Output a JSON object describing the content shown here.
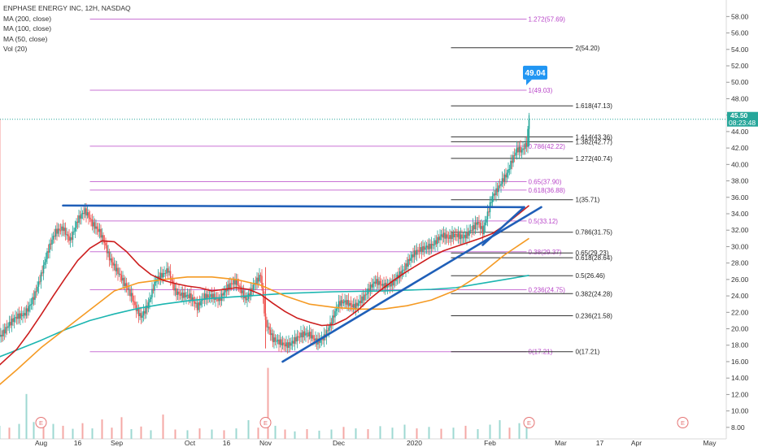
{
  "header": {
    "symbol_line": "ENPHASE ENERGY INC, 12H, NASDAQ",
    "indicators": [
      "MA (200, close)",
      "MA (100, close)",
      "MA (50, close)",
      "Vol (20)"
    ]
  },
  "price_tag": {
    "value": "45.50",
    "countdown": "08:23:48"
  },
  "callout": "49.04",
  "colors": {
    "up": "#26a69a",
    "down": "#ef5350",
    "ma200": "#1bb5b0",
    "ma100": "#f59a23",
    "ma50": "#cc1d1d",
    "trend": "#1f5fb8",
    "fib_purple": "#b845c8",
    "fib_black": "#333333",
    "callout": "#2196f3"
  },
  "chart_data": {
    "type": "candlestick",
    "title": "ENPHASE ENERGY INC, 12H, NASDAQ",
    "yaxis": {
      "side": "right",
      "ylim": [
        6.6,
        60.0
      ],
      "ticks": [
        "8.00",
        "10.00",
        "12.00",
        "14.00",
        "16.00",
        "18.00",
        "20.00",
        "22.00",
        "24.00",
        "26.00",
        "28.00",
        "30.00",
        "32.00",
        "34.00",
        "36.00",
        "38.00",
        "40.00",
        "42.00",
        "44.00",
        "46.00",
        "48.00",
        "50.00",
        "52.00",
        "54.00",
        "56.00",
        "58.00"
      ]
    },
    "xaxis": {
      "ticks": [
        {
          "label": "Aug",
          "day": 0
        },
        {
          "label": "16",
          "day": 15
        },
        {
          "label": "Sep",
          "day": 31
        },
        {
          "label": "Oct",
          "day": 61
        },
        {
          "label": "16",
          "day": 76
        },
        {
          "label": "Nov",
          "day": 92
        },
        {
          "label": "Dec",
          "day": 122
        },
        {
          "label": "2020",
          "day": 153
        },
        {
          "label": "Feb",
          "day": 184
        },
        {
          "label": "Mar",
          "day": 213
        },
        {
          "label": "17",
          "day": 229
        },
        {
          "label": "Apr",
          "day": 244
        },
        {
          "label": "May",
          "day": 274
        }
      ],
      "xlim": [
        -17,
        277
      ]
    },
    "price_path": [
      [
        -17,
        19.4
      ],
      [
        -12,
        20.4
      ],
      [
        -7,
        21.8
      ],
      [
        -3,
        24.4
      ],
      [
        0,
        26.5
      ],
      [
        3,
        29.1
      ],
      [
        6,
        31.5
      ],
      [
        9,
        32.6
      ],
      [
        12,
        31.3
      ],
      [
        15,
        33.2
      ],
      [
        18,
        33.8
      ],
      [
        21,
        32.5
      ],
      [
        24,
        32.2
      ],
      [
        26,
        31.0
      ],
      [
        28,
        29.0
      ],
      [
        31,
        26.8
      ],
      [
        34,
        25.0
      ],
      [
        37,
        24.0
      ],
      [
        39,
        22.8
      ],
      [
        41,
        22.0
      ],
      [
        44,
        23.2
      ],
      [
        47,
        25.4
      ],
      [
        50,
        26.2
      ],
      [
        52,
        27.2
      ],
      [
        55,
        25.1
      ],
      [
        58,
        24.4
      ],
      [
        61,
        23.6
      ],
      [
        64,
        22.1
      ],
      [
        67,
        24.0
      ],
      [
        70,
        24.6
      ],
      [
        73,
        23.8
      ],
      [
        76,
        24.5
      ],
      [
        80,
        25.4
      ],
      [
        84,
        24.0
      ],
      [
        87,
        25.7
      ],
      [
        90,
        26.3
      ],
      [
        92,
        20.2
      ],
      [
        95,
        18.4
      ],
      [
        98,
        18.7
      ],
      [
        102,
        18.5
      ],
      [
        106,
        18.7
      ],
      [
        110,
        19.0
      ],
      [
        113,
        18.8
      ],
      [
        116,
        19.5
      ],
      [
        119,
        20.8
      ],
      [
        122,
        22.5
      ],
      [
        125,
        23.0
      ],
      [
        128,
        23.1
      ],
      [
        131,
        23.9
      ],
      [
        134,
        24.5
      ],
      [
        137,
        25.2
      ],
      [
        140,
        25.0
      ],
      [
        143,
        25.8
      ],
      [
        146,
        26.8
      ],
      [
        149,
        27.2
      ],
      [
        152,
        28.3
      ],
      [
        155,
        29.4
      ],
      [
        158,
        30.4
      ],
      [
        161,
        30.8
      ],
      [
        164,
        31.2
      ],
      [
        167,
        30.5
      ],
      [
        170,
        31.3
      ],
      [
        173,
        31.6
      ],
      [
        176,
        32.4
      ],
      [
        179,
        32.8
      ],
      [
        181,
        31.3
      ],
      [
        183,
        33.5
      ],
      [
        185,
        36.0
      ],
      [
        187,
        37.3
      ],
      [
        189,
        38.6
      ],
      [
        191,
        39.3
      ],
      [
        193,
        40.5
      ],
      [
        195,
        41.4
      ],
      [
        197,
        41.1
      ],
      [
        199,
        42.2
      ],
      [
        200,
        45.5
      ]
    ],
    "volume": [
      {
        "day": -17,
        "v": 3.5,
        "up": true
      },
      {
        "day": -13,
        "v": 3.0,
        "up": false
      },
      {
        "day": -9,
        "v": 4.0,
        "up": true
      },
      {
        "day": -6,
        "v": 12.0,
        "up": true
      },
      {
        "day": -3,
        "v": 4.5,
        "up": true
      },
      {
        "day": 1,
        "v": 3.2,
        "up": false
      },
      {
        "day": 5,
        "v": 4.0,
        "up": true
      },
      {
        "day": 9,
        "v": 3.5,
        "up": false
      },
      {
        "day": 13,
        "v": 2.7,
        "up": true
      },
      {
        "day": 17,
        "v": 4.2,
        "up": false
      },
      {
        "day": 21,
        "v": 2.8,
        "up": true
      },
      {
        "day": 25,
        "v": 5.2,
        "up": false
      },
      {
        "day": 29,
        "v": 3.0,
        "up": false
      },
      {
        "day": 33,
        "v": 5.8,
        "up": false
      },
      {
        "day": 37,
        "v": 2.6,
        "up": true
      },
      {
        "day": 41,
        "v": 3.3,
        "up": false
      },
      {
        "day": 45,
        "v": 2.3,
        "up": true
      },
      {
        "day": 50,
        "v": 6.5,
        "up": false
      },
      {
        "day": 55,
        "v": 2.5,
        "up": false
      },
      {
        "day": 60,
        "v": 2.3,
        "up": true
      },
      {
        "day": 65,
        "v": 2.8,
        "up": false
      },
      {
        "day": 70,
        "v": 2.5,
        "up": true
      },
      {
        "day": 75,
        "v": 2.3,
        "up": false
      },
      {
        "day": 80,
        "v": 2.8,
        "up": true
      },
      {
        "day": 85,
        "v": 5.0,
        "up": true
      },
      {
        "day": 89,
        "v": 3.0,
        "up": false
      },
      {
        "day": 93,
        "v": 19.0,
        "up": false
      },
      {
        "day": 96,
        "v": 3.5,
        "up": true
      },
      {
        "day": 100,
        "v": 2.5,
        "up": false
      },
      {
        "day": 104,
        "v": 2.0,
        "up": true
      },
      {
        "day": 109,
        "v": 2.6,
        "up": false
      },
      {
        "day": 114,
        "v": 2.2,
        "up": true
      },
      {
        "day": 119,
        "v": 2.5,
        "up": true
      },
      {
        "day": 124,
        "v": 3.2,
        "up": false
      },
      {
        "day": 129,
        "v": 2.8,
        "up": true
      },
      {
        "day": 134,
        "v": 2.6,
        "up": false
      },
      {
        "day": 139,
        "v": 3.4,
        "up": true
      },
      {
        "day": 144,
        "v": 3.0,
        "up": true
      },
      {
        "day": 149,
        "v": 3.8,
        "up": true
      },
      {
        "day": 154,
        "v": 2.8,
        "up": false
      },
      {
        "day": 159,
        "v": 3.2,
        "up": true
      },
      {
        "day": 164,
        "v": 2.7,
        "up": false
      },
      {
        "day": 169,
        "v": 3.0,
        "up": true
      },
      {
        "day": 174,
        "v": 3.5,
        "up": false
      },
      {
        "day": 179,
        "v": 2.6,
        "up": true
      },
      {
        "day": 184,
        "v": 3.8,
        "up": true
      },
      {
        "day": 188,
        "v": 5.0,
        "up": true
      },
      {
        "day": 192,
        "v": 3.0,
        "up": false
      },
      {
        "day": 196,
        "v": 4.2,
        "up": true
      },
      {
        "day": 199,
        "v": 5.4,
        "up": true
      }
    ],
    "ma200": [
      [
        -17,
        16.6
      ],
      [
        -10,
        17.4
      ],
      [
        0,
        18.6
      ],
      [
        10,
        19.9
      ],
      [
        20,
        21.0
      ],
      [
        30,
        21.8
      ],
      [
        40,
        22.5
      ],
      [
        50,
        23.0
      ],
      [
        60,
        23.4
      ],
      [
        70,
        23.7
      ],
      [
        80,
        23.9
      ],
      [
        90,
        24.1
      ],
      [
        100,
        24.3
      ],
      [
        110,
        24.4
      ],
      [
        120,
        24.5
      ],
      [
        130,
        24.55
      ],
      [
        140,
        24.6
      ],
      [
        150,
        24.7
      ],
      [
        160,
        24.8
      ],
      [
        170,
        25.0
      ],
      [
        180,
        25.5
      ],
      [
        190,
        26.0
      ],
      [
        200,
        26.5
      ]
    ],
    "ma100": [
      [
        -17,
        13.2
      ],
      [
        -10,
        15.0
      ],
      [
        0,
        17.7
      ],
      [
        10,
        20.0
      ],
      [
        20,
        22.3
      ],
      [
        30,
        24.6
      ],
      [
        40,
        25.6
      ],
      [
        50,
        26.0
      ],
      [
        60,
        26.3
      ],
      [
        70,
        26.3
      ],
      [
        80,
        26.0
      ],
      [
        90,
        25.3
      ],
      [
        100,
        24.0
      ],
      [
        110,
        23.0
      ],
      [
        120,
        22.6
      ],
      [
        130,
        22.4
      ],
      [
        140,
        22.4
      ],
      [
        150,
        22.8
      ],
      [
        160,
        23.5
      ],
      [
        170,
        24.7
      ],
      [
        180,
        26.6
      ],
      [
        190,
        29.0
      ],
      [
        200,
        31.0
      ]
    ],
    "ma50": [
      [
        -17,
        15.6
      ],
      [
        -10,
        17.5
      ],
      [
        -5,
        19.5
      ],
      [
        0,
        21.7
      ],
      [
        5,
        24.0
      ],
      [
        10,
        26.2
      ],
      [
        15,
        28.3
      ],
      [
        20,
        29.8
      ],
      [
        25,
        30.7
      ],
      [
        30,
        30.6
      ],
      [
        35,
        29.4
      ],
      [
        40,
        27.8
      ],
      [
        45,
        26.6
      ],
      [
        50,
        25.9
      ],
      [
        55,
        25.5
      ],
      [
        60,
        25.2
      ],
      [
        65,
        25.0
      ],
      [
        70,
        24.6
      ],
      [
        75,
        24.8
      ],
      [
        80,
        25.0
      ],
      [
        85,
        24.8
      ],
      [
        90,
        24.2
      ],
      [
        95,
        23.1
      ],
      [
        100,
        22.1
      ],
      [
        105,
        21.3
      ],
      [
        110,
        20.8
      ],
      [
        115,
        20.4
      ],
      [
        120,
        20.5
      ],
      [
        125,
        21.2
      ],
      [
        130,
        22.3
      ],
      [
        135,
        23.7
      ],
      [
        140,
        24.9
      ],
      [
        145,
        26.0
      ],
      [
        150,
        27.0
      ],
      [
        155,
        27.9
      ],
      [
        160,
        28.8
      ],
      [
        165,
        29.5
      ],
      [
        170,
        30.0
      ],
      [
        175,
        30.5
      ],
      [
        180,
        31.0
      ],
      [
        185,
        31.6
      ],
      [
        190,
        32.6
      ],
      [
        195,
        33.8
      ],
      [
        200,
        35.0
      ]
    ],
    "trend_lines": [
      {
        "from": [
          9,
          35.0
        ],
        "to": [
          198,
          34.8
        ]
      },
      {
        "from": [
          198,
          34.8
        ],
        "to": [
          181,
          30.2
        ]
      },
      {
        "from": [
          99,
          16.0
        ],
        "to": [
          205,
          34.8
        ]
      }
    ],
    "fib_left": {
      "day_start": 20,
      "day_end": 199,
      "levels": [
        {
          "label": "1.272(57.69)",
          "value": 57.69
        },
        {
          "label": "1(49.03)",
          "value": 49.03
        },
        {
          "label": "0.786(42.22)",
          "value": 42.22
        },
        {
          "label": "0.65(37.90)",
          "value": 37.9
        },
        {
          "label": "0.618(36.88)",
          "value": 36.88
        },
        {
          "label": "0.5(33.12)",
          "value": 33.12
        },
        {
          "label": "0.38(29.37)",
          "value": 29.37
        },
        {
          "label": "0.236(24.75)",
          "value": 24.75
        },
        {
          "label": "0(17.21)",
          "value": 17.21
        }
      ]
    },
    "fib_right": {
      "day_start": 168,
      "day_end": 218,
      "levels": [
        {
          "label": "2(54.20)",
          "value": 54.2
        },
        {
          "label": "1.618(47.13)",
          "value": 47.13
        },
        {
          "label": "1.414(43.36)",
          "value": 43.36
        },
        {
          "label": "1.382(42.77)",
          "value": 42.77
        },
        {
          "label": "1.272(40.74)",
          "value": 40.74
        },
        {
          "label": "1(35.71)",
          "value": 35.71
        },
        {
          "label": "0.786(31.75)",
          "value": 31.75
        },
        {
          "label": "0.65(29.23)",
          "value": 29.23
        },
        {
          "label": "0.618(28.64)",
          "value": 28.64
        },
        {
          "label": "0.5(26.46)",
          "value": 26.46
        },
        {
          "label": "0.382(24.28)",
          "value": 24.28
        },
        {
          "label": "0.236(21.58)",
          "value": 21.58
        },
        {
          "label": "0(17.21)",
          "value": 17.21
        }
      ]
    },
    "last_price": 45.5,
    "callout_value": 49.04,
    "earnings_markers": [
      {
        "day": 0,
        "label": "E"
      },
      {
        "day": 92,
        "label": "E"
      },
      {
        "day": 200,
        "label": "E"
      },
      {
        "day": 263,
        "label": "E"
      }
    ]
  }
}
